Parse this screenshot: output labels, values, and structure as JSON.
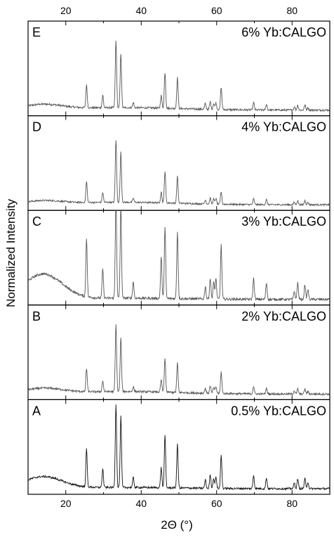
{
  "chart_data": {
    "type": "line",
    "xlabel": "2Θ (°)",
    "ylabel": "Normalized Intensity",
    "xlim": [
      10,
      90
    ],
    "x_ticks": [
      20,
      40,
      60,
      80
    ],
    "x_minor_ticks": [
      30,
      50,
      70
    ],
    "baseline_hump": {
      "center": 14,
      "width": 5
    },
    "panels": [
      {
        "letter": "E",
        "label": "6% Yb:CALGO",
        "line_color": "#555555",
        "hump": 0.06,
        "noise": 0.012,
        "peaks": [
          [
            25.5,
            0.27
          ],
          [
            29.8,
            0.15
          ],
          [
            33.3,
            0.8
          ],
          [
            34.6,
            0.65
          ],
          [
            37.9,
            0.06
          ],
          [
            45.3,
            0.15
          ],
          [
            46.3,
            0.43
          ],
          [
            49.6,
            0.37
          ],
          [
            57.0,
            0.07
          ],
          [
            58.3,
            0.09
          ],
          [
            59.2,
            0.07
          ],
          [
            59.8,
            0.08
          ],
          [
            61.2,
            0.27
          ],
          [
            69.8,
            0.09
          ],
          [
            73.2,
            0.07
          ],
          [
            80.6,
            0.04
          ],
          [
            81.5,
            0.06
          ],
          [
            83.4,
            0.06
          ],
          [
            84.2,
            0.03
          ]
        ]
      },
      {
        "letter": "D",
        "label": "4% Yb:CALGO",
        "line_color": "#555555",
        "hump": 0.04,
        "noise": 0.01,
        "peaks": [
          [
            25.5,
            0.25
          ],
          [
            29.8,
            0.12
          ],
          [
            33.3,
            0.75
          ],
          [
            34.6,
            0.6
          ],
          [
            37.9,
            0.05
          ],
          [
            45.3,
            0.13
          ],
          [
            46.3,
            0.38
          ],
          [
            49.6,
            0.32
          ],
          [
            57.0,
            0.05
          ],
          [
            58.3,
            0.07
          ],
          [
            59.2,
            0.06
          ],
          [
            59.8,
            0.07
          ],
          [
            61.2,
            0.15
          ],
          [
            69.8,
            0.07
          ],
          [
            73.2,
            0.06
          ],
          [
            80.6,
            0.03
          ],
          [
            81.5,
            0.05
          ],
          [
            83.4,
            0.05
          ],
          [
            84.2,
            0.03
          ]
        ]
      },
      {
        "letter": "C",
        "label": "3% Yb:CALGO",
        "line_color": "#555555",
        "hump": 0.3,
        "noise": 0.015,
        "peaks": [
          [
            25.5,
            0.7
          ],
          [
            29.8,
            0.35
          ],
          [
            33.3,
            1.2
          ],
          [
            34.6,
            1.1
          ],
          [
            37.9,
            0.2
          ],
          [
            45.3,
            0.5
          ],
          [
            46.3,
            0.85
          ],
          [
            49.6,
            0.8
          ],
          [
            57.0,
            0.15
          ],
          [
            58.3,
            0.25
          ],
          [
            59.2,
            0.2
          ],
          [
            59.8,
            0.25
          ],
          [
            61.2,
            0.65
          ],
          [
            69.8,
            0.25
          ],
          [
            73.2,
            0.2
          ],
          [
            80.6,
            0.1
          ],
          [
            81.5,
            0.2
          ],
          [
            83.4,
            0.18
          ],
          [
            84.2,
            0.12
          ]
        ]
      },
      {
        "letter": "B",
        "label": "2% Yb:CALGO",
        "line_color": "#555555",
        "hump": 0.06,
        "noise": 0.012,
        "peaks": [
          [
            25.5,
            0.28
          ],
          [
            29.8,
            0.13
          ],
          [
            33.3,
            0.8
          ],
          [
            34.6,
            0.65
          ],
          [
            37.9,
            0.06
          ],
          [
            45.3,
            0.15
          ],
          [
            46.3,
            0.4
          ],
          [
            49.6,
            0.35
          ],
          [
            57.0,
            0.06
          ],
          [
            58.3,
            0.09
          ],
          [
            59.2,
            0.07
          ],
          [
            59.8,
            0.08
          ],
          [
            61.2,
            0.26
          ],
          [
            69.8,
            0.09
          ],
          [
            73.2,
            0.07
          ],
          [
            80.6,
            0.04
          ],
          [
            81.5,
            0.06
          ],
          [
            83.4,
            0.06
          ],
          [
            84.2,
            0.03
          ]
        ]
      },
      {
        "letter": "A",
        "label": "0.5% Yb:CALGO",
        "line_color": "#111111",
        "hump": 0.14,
        "noise": 0.012,
        "peaks": [
          [
            25.5,
            0.45
          ],
          [
            29.8,
            0.22
          ],
          [
            33.3,
            1.0
          ],
          [
            34.6,
            0.85
          ],
          [
            37.9,
            0.12
          ],
          [
            45.3,
            0.24
          ],
          [
            46.3,
            0.62
          ],
          [
            49.6,
            0.52
          ],
          [
            57.0,
            0.1
          ],
          [
            58.3,
            0.16
          ],
          [
            59.2,
            0.12
          ],
          [
            59.8,
            0.14
          ],
          [
            61.2,
            0.4
          ],
          [
            69.8,
            0.16
          ],
          [
            73.2,
            0.13
          ],
          [
            80.6,
            0.07
          ],
          [
            81.5,
            0.12
          ],
          [
            83.4,
            0.12
          ],
          [
            84.2,
            0.08
          ]
        ]
      }
    ]
  }
}
